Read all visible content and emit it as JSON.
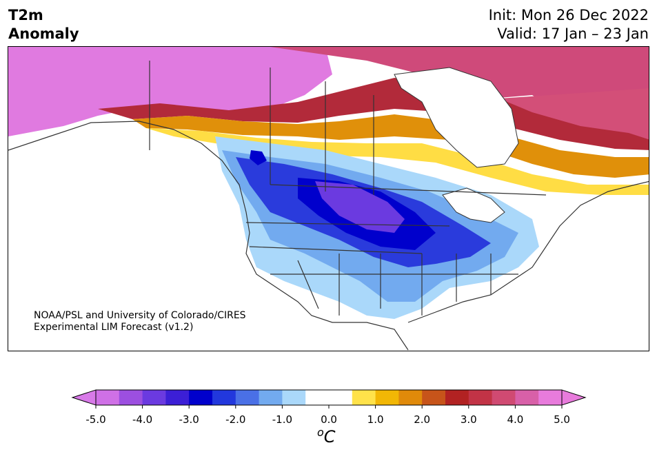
{
  "title": {
    "line1": "T2m",
    "line2": "Anomaly"
  },
  "dates": {
    "init": "Init: Mon 26 Dec 2022",
    "valid": "Valid: 17 Jan – 23 Jan"
  },
  "credit": {
    "line1": "NOAA/PSL and University of Colorado/CIRES",
    "line2": "Experimental LIM Forecast (v1.2)"
  },
  "colorbar": {
    "unit_base": "C",
    "unit_sup": "o",
    "ticks": [
      "-5.0",
      "-4.0",
      "-3.0",
      "-2.0",
      "-1.0",
      "0.0",
      "1.0",
      "2.0",
      "3.0",
      "4.0",
      "5.0"
    ],
    "colors": [
      "#cf70e6",
      "#9c4fe0",
      "#6b3ae0",
      "#3c1fd6",
      "#0000cc",
      "#2238dd",
      "#4a70e6",
      "#72aaef",
      "#aad8fa",
      "#ffffff",
      "#ffffff",
      "#ffe24a",
      "#f2b705",
      "#e08a0a",
      "#c7541a",
      "#b22222",
      "#c23346",
      "#d04a72",
      "#d860a8",
      "#e87bdc"
    ],
    "under_color": "#d87ae8",
    "over_color": "#e87bdc"
  }
}
